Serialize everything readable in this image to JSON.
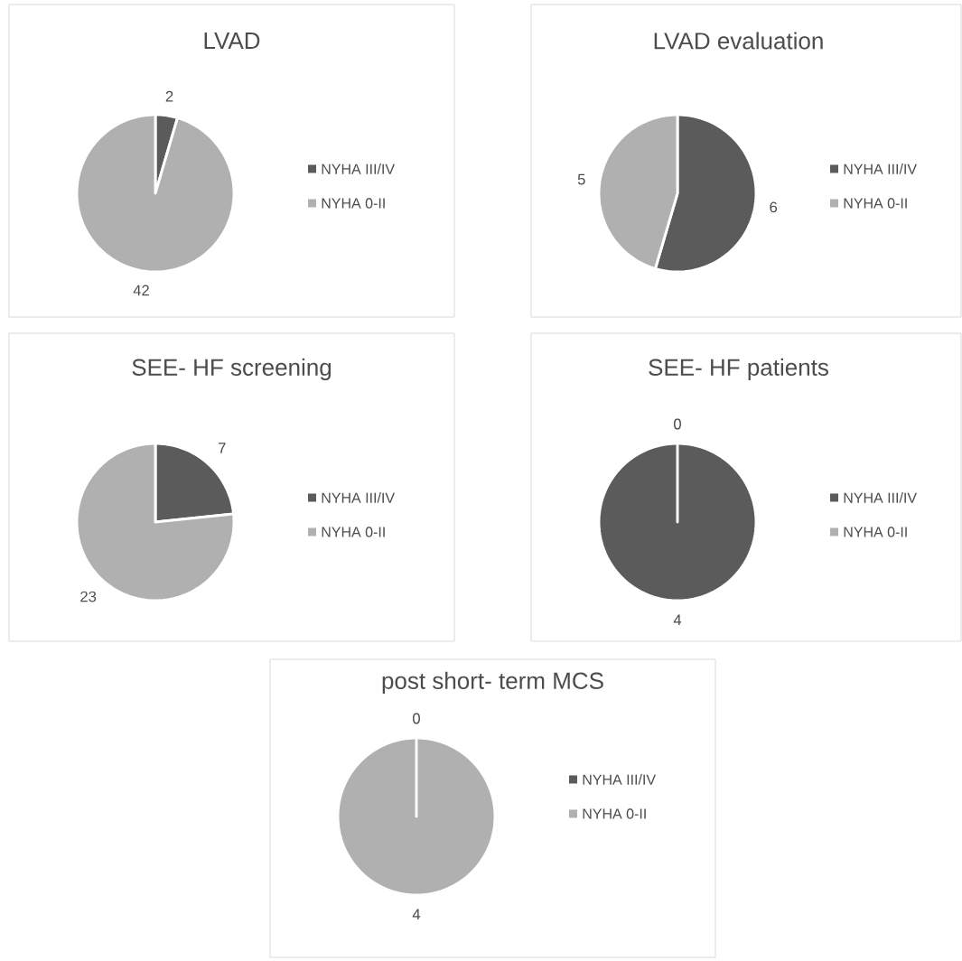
{
  "chart_data": [
    {
      "type": "pie",
      "title": "LVAD",
      "categories": [
        "NYHA III/IV",
        "NYHA 0-II"
      ],
      "values": [
        2,
        42
      ],
      "colors": [
        "#5b5b5b",
        "#b0b0b0"
      ],
      "data_labels": true,
      "legend": "right"
    },
    {
      "type": "pie",
      "title": "LVAD evaluation",
      "categories": [
        "NYHA III/IV",
        "NYHA 0-II"
      ],
      "values": [
        6,
        5
      ],
      "colors": [
        "#5b5b5b",
        "#b0b0b0"
      ],
      "data_labels": true,
      "legend": "right"
    },
    {
      "type": "pie",
      "title": "SEE- HF screening",
      "categories": [
        "NYHA III/IV",
        "NYHA 0-II"
      ],
      "values": [
        7,
        23
      ],
      "colors": [
        "#5b5b5b",
        "#b0b0b0"
      ],
      "data_labels": true,
      "legend": "right"
    },
    {
      "type": "pie",
      "title": "SEE- HF patients",
      "categories": [
        "NYHA III/IV",
        "NYHA 0-II"
      ],
      "values": [
        4,
        0
      ],
      "value_labels": [
        "4",
        "0"
      ],
      "colors": [
        "#5b5b5b",
        "#b0b0b0"
      ],
      "legend": "right"
    },
    {
      "type": "pie",
      "title": "post short- term MCS",
      "categories": [
        "NYHA III/IV",
        "NYHA 0-II"
      ],
      "values": [
        0,
        4
      ],
      "value_labels": [
        "0",
        "4"
      ],
      "colors": [
        "#5b5b5b",
        "#b0b0b0"
      ],
      "legend": "right"
    }
  ]
}
